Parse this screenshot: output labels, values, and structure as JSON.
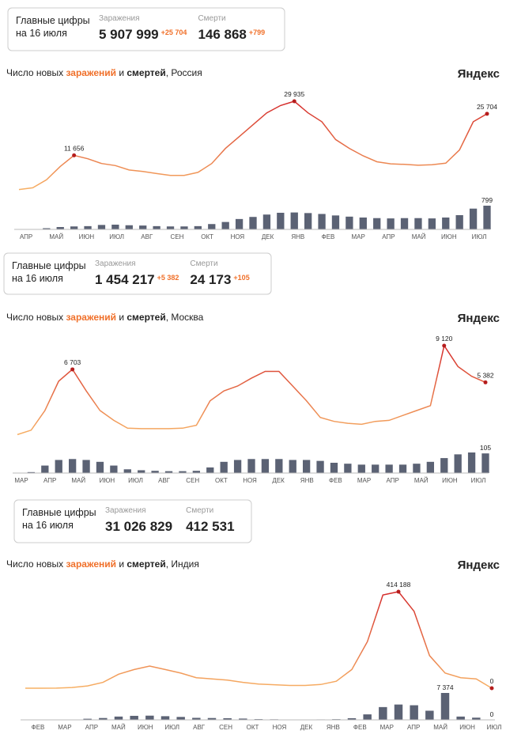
{
  "summaries": [
    {
      "title_lines": [
        "Главные цифры",
        "на 16 июля"
      ],
      "infections_label": "Заражения",
      "infections": "5 907 999",
      "infections_delta": "+25 704",
      "deaths_label": "Смерти",
      "deaths": "146 868",
      "deaths_delta": "+799"
    },
    {
      "title_lines": [
        "Главные цифры",
        "на 16 июля"
      ],
      "infections_label": "Заражения",
      "infections": "1 454 217",
      "infections_delta": "+5 382",
      "deaths_label": "Смерти",
      "deaths": "24 173",
      "deaths_delta": "+105"
    },
    {
      "title_lines": [
        "Главные цифры",
        "на 16 июля"
      ],
      "infections_label": "Заражения",
      "infections": "31 026 829",
      "deaths_label": "Смерти",
      "deaths": "412 531"
    }
  ],
  "chart_data": [
    {
      "type": "line",
      "title_parts": [
        "Число новых ",
        " и ",
        ", Россия"
      ],
      "watermark": "Яндекс",
      "x_labels": [
        "АПР",
        "МАЙ",
        "ИЮН",
        "ИЮЛ",
        "АВГ",
        "СЕН",
        "ОКТ",
        "НОЯ",
        "ДЕК",
        "ЯНВ",
        "ФЕВ",
        "МАР",
        "АПР",
        "МАЙ",
        "ИЮН",
        "ИЮЛ"
      ],
      "series": [
        {
          "name": "заражений",
          "color": "#f7b064",
          "peak_color": "#d42a2a",
          "values": [
            100,
            700,
            3400,
            7900,
            11656,
            10500,
            8900,
            8200,
            6700,
            6200,
            5500,
            4900,
            4900,
            5900,
            8900,
            14000,
            18000,
            22000,
            26000,
            28500,
            29935,
            26000,
            23000,
            17000,
            14000,
            11500,
            9500,
            8800,
            8600,
            8300,
            8500,
            9000,
            13500,
            23000,
            25704
          ],
          "value_labels": [
            null,
            null,
            null,
            null,
            "11 656",
            null,
            null,
            null,
            null,
            null,
            null,
            null,
            null,
            null,
            null,
            null,
            null,
            null,
            null,
            null,
            "29 935",
            null,
            null,
            null,
            null,
            null,
            null,
            null,
            null,
            null,
            null,
            null,
            null,
            null,
            "25 704"
          ]
        },
        {
          "name": "смертей",
          "color": "#5b6274",
          "values": [
            0,
            10,
            40,
            80,
            100,
            110,
            150,
            160,
            140,
            130,
            110,
            100,
            100,
            110,
            180,
            250,
            350,
            420,
            500,
            560,
            570,
            550,
            520,
            470,
            430,
            400,
            380,
            370,
            380,
            380,
            370,
            400,
            480,
            700,
            799
          ],
          "value_labels": [
            null,
            null,
            null,
            null,
            null,
            null,
            null,
            null,
            null,
            null,
            null,
            null,
            null,
            null,
            null,
            null,
            null,
            null,
            null,
            null,
            null,
            null,
            null,
            null,
            null,
            null,
            null,
            null,
            null,
            null,
            null,
            null,
            null,
            null,
            "799"
          ]
        }
      ]
    },
    {
      "type": "line",
      "title_parts": [
        "Число новых ",
        " и ",
        ", Москва"
      ],
      "watermark": "Яндекс",
      "x_labels": [
        "МАР",
        "АПР",
        "МАЙ",
        "ИЮН",
        "ИЮЛ",
        "АВГ",
        "СЕН",
        "ОКТ",
        "НОЯ",
        "ДЕК",
        "ЯНВ",
        "ФЕВ",
        "МАР",
        "АПР",
        "МАЙ",
        "ИЮН",
        "ИЮЛ"
      ],
      "series": [
        {
          "name": "заражений",
          "color": "#f7b064",
          "peak_color": "#d42a2a",
          "values": [
            50,
            500,
            2500,
            5500,
            6703,
            4500,
            2500,
            1500,
            700,
            650,
            650,
            650,
            700,
            1000,
            3500,
            4500,
            5000,
            5800,
            6500,
            6500,
            5000,
            3500,
            1800,
            1400,
            1200,
            1100,
            1400,
            1500,
            2000,
            2500,
            3000,
            9120,
            7000,
            6000,
            5382
          ],
          "value_labels": [
            null,
            null,
            null,
            null,
            "6 703",
            null,
            null,
            null,
            null,
            null,
            null,
            null,
            null,
            null,
            null,
            null,
            null,
            null,
            null,
            null,
            null,
            null,
            null,
            null,
            null,
            null,
            null,
            null,
            null,
            null,
            null,
            "9 120",
            null,
            null,
            "5 382"
          ]
        },
        {
          "name": "смертей",
          "color": "#5b6274",
          "values": [
            0,
            5,
            40,
            70,
            75,
            70,
            60,
            40,
            20,
            15,
            12,
            10,
            10,
            12,
            30,
            60,
            70,
            75,
            75,
            75,
            70,
            70,
            65,
            55,
            50,
            45,
            45,
            45,
            45,
            50,
            60,
            80,
            100,
            110,
            105
          ],
          "value_labels": [
            null,
            null,
            null,
            null,
            null,
            null,
            null,
            null,
            null,
            null,
            null,
            null,
            null,
            null,
            null,
            null,
            null,
            null,
            null,
            null,
            null,
            null,
            null,
            null,
            null,
            null,
            null,
            null,
            null,
            null,
            null,
            null,
            null,
            null,
            "105"
          ]
        }
      ]
    },
    {
      "type": "line",
      "title_parts": [
        "Число новых ",
        " и ",
        ", Индия"
      ],
      "watermark": "Яндекс",
      "x_labels": [
        "ФЕВ",
        "МАР",
        "АПР",
        "МАЙ",
        "ИЮН",
        "ИЮЛ",
        "АВГ",
        "СЕН",
        "ОКТ",
        "НОЯ",
        "ДЕК",
        "ЯНВ",
        "ФЕВ",
        "МАР",
        "АПР",
        "МАЙ",
        "ИЮН",
        "ИЮЛ"
      ],
      "series": [
        {
          "name": "заражений",
          "color": "#f7b064",
          "peak_color": "#d42a2a",
          "values": [
            0,
            0,
            500,
            3000,
            10000,
            25000,
            60000,
            80000,
            95000,
            80000,
            65000,
            45000,
            40000,
            35000,
            25000,
            18000,
            15000,
            12000,
            12000,
            16000,
            30000,
            80000,
            200000,
            400000,
            414188,
            330000,
            140000,
            65000,
            45000,
            40000,
            0
          ],
          "value_labels": [
            null,
            null,
            null,
            null,
            null,
            null,
            null,
            null,
            null,
            null,
            null,
            null,
            null,
            null,
            null,
            null,
            null,
            null,
            null,
            null,
            null,
            null,
            null,
            null,
            "414 188",
            null,
            null,
            null,
            null,
            null,
            "0"
          ]
        },
        {
          "name": "смертей",
          "color": "#5b6274",
          "values": [
            0,
            0,
            20,
            100,
            300,
            500,
            900,
            1100,
            1150,
            1000,
            800,
            550,
            500,
            450,
            350,
            200,
            150,
            100,
            100,
            120,
            180,
            450,
            1500,
            3500,
            4200,
            4000,
            2500,
            7374,
            900,
            600,
            0
          ],
          "value_labels": [
            null,
            null,
            null,
            null,
            null,
            null,
            null,
            null,
            null,
            null,
            null,
            null,
            null,
            null,
            null,
            null,
            null,
            null,
            null,
            null,
            null,
            null,
            null,
            null,
            null,
            null,
            null,
            "7 374",
            null,
            null,
            "0"
          ]
        }
      ]
    }
  ]
}
